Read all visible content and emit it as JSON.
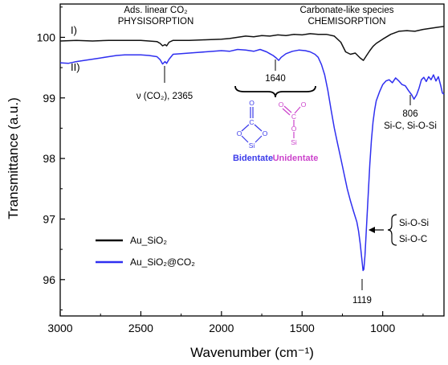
{
  "chart_data": {
    "type": "line",
    "xlabel": "Wavenumber (cm⁻¹)",
    "ylabel": "Transmittance (a.u.)",
    "xlim": [
      3000,
      620
    ],
    "ylim": [
      95.4,
      100.55
    ],
    "x_ticks": [
      3000,
      2500,
      2000,
      1500,
      1000
    ],
    "y_ticks": [
      96,
      97,
      98,
      99,
      100
    ],
    "x_tick_labels": [
      "3000",
      "2500",
      "2000",
      "1500",
      "1000"
    ],
    "y_tick_labels": [
      "96",
      "97",
      "98",
      "99",
      "100"
    ],
    "legend_position": "bottom-left",
    "series": [
      {
        "name": "Au_SiO₂",
        "curve_label": "I)",
        "color": "#111111",
        "points": [
          [
            3000,
            99.94
          ],
          [
            2900,
            99.95
          ],
          [
            2800,
            99.94
          ],
          [
            2700,
            99.95
          ],
          [
            2600,
            99.95
          ],
          [
            2500,
            99.95
          ],
          [
            2450,
            99.94
          ],
          [
            2400,
            99.93
          ],
          [
            2380,
            99.9
          ],
          [
            2365,
            99.86
          ],
          [
            2350,
            99.88
          ],
          [
            2340,
            99.86
          ],
          [
            2325,
            99.92
          ],
          [
            2300,
            99.95
          ],
          [
            2200,
            99.95
          ],
          [
            2100,
            99.96
          ],
          [
            2000,
            99.97
          ],
          [
            1950,
            99.98
          ],
          [
            1900,
            100.0
          ],
          [
            1850,
            100.02
          ],
          [
            1800,
            100.01
          ],
          [
            1750,
            100.03
          ],
          [
            1700,
            100.02
          ],
          [
            1650,
            100.04
          ],
          [
            1600,
            100.03
          ],
          [
            1550,
            100.05
          ],
          [
            1500,
            100.04
          ],
          [
            1450,
            100.06
          ],
          [
            1400,
            100.05
          ],
          [
            1350,
            100.05
          ],
          [
            1300,
            100.02
          ],
          [
            1260,
            99.92
          ],
          [
            1230,
            99.76
          ],
          [
            1200,
            99.72
          ],
          [
            1170,
            99.74
          ],
          [
            1140,
            99.66
          ],
          [
            1120,
            99.62
          ],
          [
            1100,
            99.7
          ],
          [
            1080,
            99.78
          ],
          [
            1060,
            99.85
          ],
          [
            1040,
            99.9
          ],
          [
            1000,
            99.97
          ],
          [
            950,
            100.05
          ],
          [
            900,
            100.1
          ],
          [
            850,
            100.11
          ],
          [
            800,
            100.1
          ],
          [
            750,
            100.13
          ],
          [
            700,
            100.15
          ],
          [
            650,
            100.17
          ],
          [
            620,
            100.18
          ]
        ]
      },
      {
        "name": "Au_SiO₂@CO₂",
        "curve_label": "II)",
        "color": "#2f2ff0",
        "points": [
          [
            3000,
            99.58
          ],
          [
            2950,
            99.57
          ],
          [
            2900,
            99.6
          ],
          [
            2850,
            99.62
          ],
          [
            2800,
            99.64
          ],
          [
            2750,
            99.66
          ],
          [
            2700,
            99.68
          ],
          [
            2650,
            99.7
          ],
          [
            2600,
            99.71
          ],
          [
            2550,
            99.71
          ],
          [
            2500,
            99.71
          ],
          [
            2450,
            99.7
          ],
          [
            2400,
            99.68
          ],
          [
            2380,
            99.63
          ],
          [
            2365,
            99.56
          ],
          [
            2350,
            99.6
          ],
          [
            2340,
            99.57
          ],
          [
            2325,
            99.64
          ],
          [
            2300,
            99.72
          ],
          [
            2250,
            99.73
          ],
          [
            2200,
            99.74
          ],
          [
            2150,
            99.75
          ],
          [
            2100,
            99.76
          ],
          [
            2050,
            99.77
          ],
          [
            2000,
            99.78
          ],
          [
            1950,
            99.77
          ],
          [
            1900,
            99.8
          ],
          [
            1850,
            99.79
          ],
          [
            1800,
            99.77
          ],
          [
            1760,
            99.8
          ],
          [
            1720,
            99.76
          ],
          [
            1700,
            99.73
          ],
          [
            1680,
            99.7
          ],
          [
            1660,
            99.66
          ],
          [
            1645,
            99.62
          ],
          [
            1630,
            99.67
          ],
          [
            1600,
            99.73
          ],
          [
            1560,
            99.77
          ],
          [
            1520,
            99.79
          ],
          [
            1480,
            99.78
          ],
          [
            1450,
            99.76
          ],
          [
            1420,
            99.72
          ],
          [
            1400,
            99.67
          ],
          [
            1380,
            99.55
          ],
          [
            1360,
            99.38
          ],
          [
            1340,
            99.12
          ],
          [
            1320,
            98.8
          ],
          [
            1300,
            98.5
          ],
          [
            1280,
            98.25
          ],
          [
            1260,
            98.0
          ],
          [
            1240,
            97.75
          ],
          [
            1220,
            97.5
          ],
          [
            1200,
            97.3
          ],
          [
            1180,
            97.12
          ],
          [
            1160,
            96.95
          ],
          [
            1150,
            96.8
          ],
          [
            1140,
            96.6
          ],
          [
            1130,
            96.35
          ],
          [
            1122,
            96.15
          ],
          [
            1117,
            96.17
          ],
          [
            1110,
            96.4
          ],
          [
            1100,
            96.9
          ],
          [
            1090,
            97.4
          ],
          [
            1080,
            97.9
          ],
          [
            1070,
            98.3
          ],
          [
            1060,
            98.6
          ],
          [
            1050,
            98.8
          ],
          [
            1040,
            98.95
          ],
          [
            1020,
            99.1
          ],
          [
            1000,
            99.22
          ],
          [
            980,
            99.28
          ],
          [
            960,
            99.3
          ],
          [
            940,
            99.25
          ],
          [
            920,
            99.33
          ],
          [
            900,
            99.28
          ],
          [
            880,
            99.22
          ],
          [
            860,
            99.2
          ],
          [
            840,
            99.12
          ],
          [
            820,
            99.05
          ],
          [
            806,
            98.98
          ],
          [
            790,
            99.05
          ],
          [
            775,
            99.16
          ],
          [
            760,
            99.3
          ],
          [
            745,
            99.34
          ],
          [
            730,
            99.27
          ],
          [
            715,
            99.35
          ],
          [
            700,
            99.3
          ],
          [
            685,
            99.38
          ],
          [
            670,
            99.28
          ],
          [
            655,
            99.35
          ],
          [
            640,
            99.2
          ],
          [
            630,
            99.08
          ],
          [
            620,
            99.06
          ]
        ]
      }
    ],
    "annotations": {
      "phys_line1": "Ads. linear CO₂",
      "phys_line2": "PHYSISORPTION",
      "chem_line1": "Carbonate-like species",
      "chem_line2": "CHEMISORPTION",
      "peak_2365": "ν (CO₂), 2365",
      "peak_1640": "1640",
      "peak_806_line1": "806",
      "peak_806_line2": "Si-C, Si-O-Si",
      "peak_1119": "1119",
      "brace_line1": "Si-O-Si",
      "brace_line2": "Si-O-C",
      "bidentate": "Bidentate",
      "unidentate": "Unidentate"
    },
    "structure_labels": {
      "o": "O",
      "c": "C",
      "si": "Si"
    },
    "colors": {
      "bidentate": "#3b3bea",
      "unidentate": "#cc44cc"
    }
  }
}
